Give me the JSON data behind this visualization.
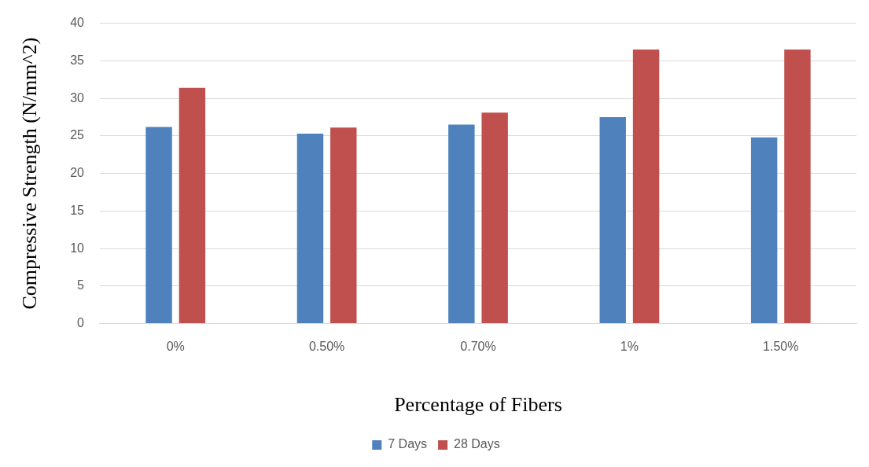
{
  "chart_data": {
    "type": "bar",
    "xlabel": "Percentage of Fibers",
    "ylabel": "Compressive Strength (N/mm^2)",
    "categories": [
      "0%",
      "0.50%",
      "0.70%",
      "1%",
      "1.50%"
    ],
    "series": [
      {
        "name": "7 Days",
        "color": "#4f81bd",
        "values": [
          26.2,
          25.3,
          26.5,
          27.5,
          24.8
        ]
      },
      {
        "name": "28 Days",
        "color": "#c0504d",
        "values": [
          31.4,
          26.1,
          28.1,
          36.5,
          36.5
        ]
      }
    ],
    "ylim": [
      0,
      40
    ],
    "yticks": [
      0,
      5,
      10,
      15,
      20,
      25,
      30,
      35,
      40
    ],
    "grid": "y",
    "legend": "bottom"
  }
}
